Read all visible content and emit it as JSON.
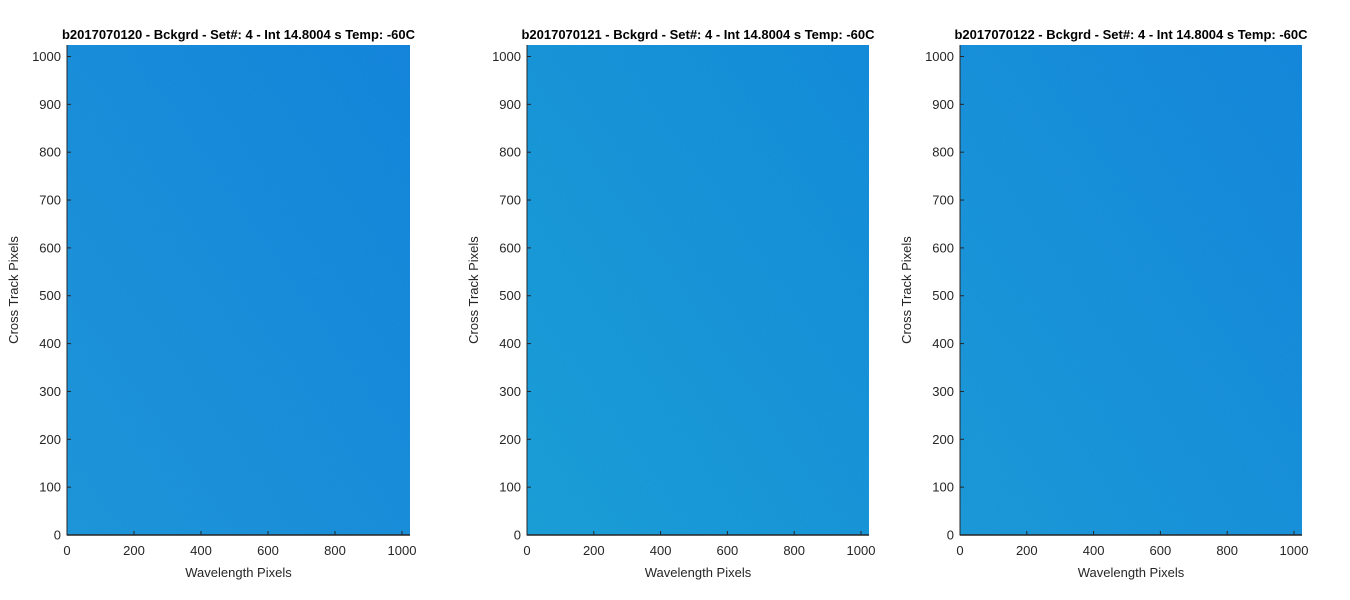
{
  "chart_data": [
    {
      "type": "heatmap",
      "title": "b2017070120 - Bckgrd - Set#: 4 - Int 14.8004 s Temp: -60C",
      "xlabel": "Wavelength Pixels",
      "ylabel": "Cross Track Pixels",
      "xlim": [
        0,
        1024
      ],
      "ylim": [
        0,
        1024
      ],
      "xticks": [
        0,
        200,
        400,
        600,
        800,
        1000
      ],
      "yticks": [
        0,
        100,
        200,
        300,
        400,
        500,
        600,
        700,
        800,
        900,
        1000
      ],
      "colors": {
        "bottom_left": "#1591d6",
        "top_right": "#0b80d8"
      },
      "grid": false
    },
    {
      "type": "heatmap",
      "title": "b2017070121 - Bckgrd - Set#: 4 - Int 14.8004 s Temp: -60C",
      "xlabel": "Wavelength Pixels",
      "ylabel": "Cross Track Pixels",
      "xlim": [
        0,
        1024
      ],
      "ylim": [
        0,
        1024
      ],
      "xticks": [
        0,
        200,
        400,
        600,
        800,
        1000
      ],
      "yticks": [
        0,
        100,
        200,
        300,
        400,
        500,
        600,
        700,
        800,
        900,
        1000
      ],
      "colors": {
        "bottom_left": "#129ad4",
        "top_right": "#0b86d6"
      },
      "grid": false
    },
    {
      "type": "heatmap",
      "title": "b2017070122 - Bckgrd - Set#: 4 - Int 14.8004 s Temp: -60C",
      "xlabel": "Wavelength Pixels",
      "ylabel": "Cross Track Pixels",
      "xlim": [
        0,
        1024
      ],
      "ylim": [
        0,
        1024
      ],
      "xticks": [
        0,
        200,
        400,
        600,
        800,
        1000
      ],
      "yticks": [
        0,
        100,
        200,
        300,
        400,
        500,
        600,
        700,
        800,
        900,
        1000
      ],
      "colors": {
        "bottom_left": "#1394d5",
        "top_right": "#0b82d8"
      },
      "grid": false
    }
  ]
}
